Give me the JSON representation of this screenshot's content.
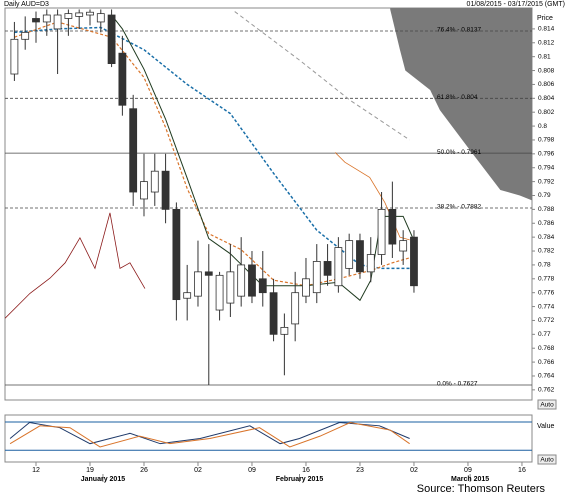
{
  "chart_data": {
    "type": "candlestick",
    "title": "Daily AUD=D3",
    "subtitle": "01/08/2015 - 03/17/2015 (GMT)",
    "y_label": "Price",
    "source": "Source: Thomson Reuters",
    "auto_label": "Auto",
    "open": [
      0.8075,
      0.8125,
      0.8155,
      0.815,
      0.814,
      0.8155,
      0.8158,
      0.816,
      0.815,
      0.816,
      0.8105,
      0.8025,
      0.7895,
      0.7905,
      0.7935,
      0.788,
      0.7752,
      0.7755,
      0.779,
      0.7735,
      0.7745,
      0.7755,
      0.78,
      0.778,
      0.776,
      0.77,
      0.7715,
      0.7755,
      0.776,
      0.7805,
      0.777,
      0.7795,
      0.7835,
      0.779,
      0.7815,
      0.788,
      0.782,
      0.784
    ],
    "high": [
      0.815,
      0.8158,
      0.8165,
      0.8168,
      0.8168,
      0.8168,
      0.8168,
      0.8168,
      0.8168,
      0.8168,
      0.813,
      0.8045,
      0.796,
      0.796,
      0.796,
      0.789,
      0.78,
      0.7835,
      0.783,
      0.779,
      0.783,
      0.784,
      0.782,
      0.782,
      0.778,
      0.773,
      0.779,
      0.781,
      0.783,
      0.783,
      0.784,
      0.7845,
      0.7845,
      0.784,
      0.7905,
      0.792,
      0.785,
      0.785
    ],
    "low": [
      0.8065,
      0.811,
      0.812,
      0.813,
      0.8075,
      0.813,
      0.814,
      0.8145,
      0.8135,
      0.8085,
      0.8015,
      0.7885,
      0.787,
      0.7885,
      0.786,
      0.772,
      0.772,
      0.774,
      0.7627,
      0.772,
      0.7725,
      0.774,
      0.7745,
      0.774,
      0.769,
      0.7641,
      0.769,
      0.7745,
      0.7745,
      0.777,
      0.776,
      0.7785,
      0.778,
      0.7775,
      0.78,
      0.781,
      0.78,
      0.776
    ],
    "close": [
      0.8125,
      0.8135,
      0.815,
      0.816,
      0.816,
      0.8162,
      0.8163,
      0.8164,
      0.8162,
      0.809,
      0.803,
      0.7905,
      0.792,
      0.7935,
      0.788,
      0.775,
      0.776,
      0.779,
      0.7785,
      0.7785,
      0.779,
      0.78,
      0.7755,
      0.776,
      0.77,
      0.771,
      0.776,
      0.778,
      0.7805,
      0.7785,
      0.7825,
      0.7835,
      0.779,
      0.7815,
      0.788,
      0.783,
      0.7835,
      0.777
    ],
    "up_color": "#ffffff",
    "down_color": "#333333",
    "xlim": [
      -0.87,
      47.93
    ],
    "xticks": [
      {
        "value": 2,
        "label": "12"
      },
      {
        "value": 7,
        "label": "19"
      },
      {
        "value": 12,
        "label": "26"
      },
      {
        "value": 17,
        "label": "02"
      },
      {
        "value": 22,
        "label": "09"
      },
      {
        "value": 27,
        "label": "16"
      },
      {
        "value": 32,
        "label": "23"
      },
      {
        "value": 37,
        "label": "02"
      },
      {
        "value": 42,
        "label": "09"
      },
      {
        "value": 47,
        "label": "16"
      }
    ],
    "month_labels": [
      {
        "value": 8.2,
        "label": "January 2015"
      },
      {
        "value": 26.4,
        "label": "February 2015"
      },
      {
        "value": 42.2,
        "label": "March 2015"
      }
    ],
    "ylim": [
      0.76054,
      0.81701
    ],
    "yticks": [
      0.762,
      0.764,
      0.766,
      0.768,
      0.77,
      0.772,
      0.774,
      0.776,
      0.778,
      0.78,
      0.782,
      0.784,
      0.786,
      0.788,
      0.79,
      0.792,
      0.794,
      0.796,
      0.798,
      0.8,
      0.802,
      0.804,
      0.806,
      0.808,
      0.81,
      0.812,
      0.814
    ],
    "overlays": [
      {
        "color": "#1a6fa8",
        "dash": "3,2",
        "width": 1.5,
        "x": [
          0,
          4,
          8,
          12,
          16,
          20,
          24,
          28,
          32,
          34,
          37
        ],
        "values": [
          0.8135,
          0.814,
          0.8142,
          0.811,
          0.806,
          0.8018,
          0.7932,
          0.785,
          0.78,
          0.7795,
          0.7795
        ]
      },
      {
        "color": "#d9742a",
        "dash": "3,2",
        "width": 1.2,
        "x": [
          0,
          4,
          9,
          12,
          14,
          16,
          18,
          21,
          24,
          27,
          30,
          33,
          35,
          37
        ],
        "values": [
          0.8128,
          0.815,
          0.8128,
          0.807,
          0.7998,
          0.791,
          0.7845,
          0.7822,
          0.7778,
          0.777,
          0.778,
          0.7792,
          0.7803,
          0.7812
        ]
      },
      {
        "color": "#1f3a1f",
        "dash": "",
        "width": 1,
        "x": [
          9,
          10,
          12,
          14,
          16,
          18,
          20,
          23,
          27,
          30,
          32,
          33,
          34,
          36,
          37
        ],
        "values": [
          0.816,
          0.814,
          0.8082,
          0.801,
          0.7925,
          0.7838,
          0.7816,
          0.777,
          0.777,
          0.7775,
          0.7749,
          0.7778,
          0.787,
          0.787,
          0.7835
        ]
      },
      {
        "color": "#d9742a",
        "dash": "",
        "width": 0.8,
        "x": [
          29.7,
          30.6,
          32.9,
          34.3,
          35.7,
          36.6
        ],
        "values": [
          0.7962,
          0.7948,
          0.7926,
          0.789,
          0.784,
          0.7836
        ]
      },
      {
        "color": "#999999",
        "dash": "4,3",
        "width": 1,
        "x": [
          20.4,
          26.4,
          31.1,
          36.6
        ],
        "values": [
          0.8165,
          0.8095,
          0.8037,
          0.798
        ]
      },
      {
        "color": "#8b1a1a",
        "dash": "",
        "width": 0.8,
        "x": [
          -0.87,
          1.44,
          3.3,
          4.7,
          6.07,
          7.46,
          8.85,
          9.78,
          10.7,
          12.09
        ],
        "values": [
          0.7723,
          0.7759,
          0.7781,
          0.7803,
          0.7839,
          0.7795,
          0.7875,
          0.7795,
          0.7803,
          0.7766
        ]
      }
    ],
    "cloud": {
      "color": "#7a7a7a",
      "x": [
        34.8,
        35.7,
        36.2,
        38.5,
        39.4,
        42.2,
        45,
        46.8,
        47.93
      ],
      "values": [
        0.8168,
        0.811,
        0.808,
        0.8052,
        0.8023,
        0.7965,
        0.7908,
        0.79,
        0.7893
      ]
    },
    "fib_levels": [
      {
        "value": 0.8137,
        "label": "76.4% - 0.8137",
        "dash": "3,2"
      },
      {
        "value": 0.804,
        "label": "61.8% - 0.804",
        "dash": "3,2"
      },
      {
        "value": 0.7961,
        "label": "50.0% - 0.7961",
        "dash": ""
      },
      {
        "value": 0.7882,
        "label": "38.2% - 0.7882",
        "dash": "3,2"
      },
      {
        "value": 0.7627,
        "label": "0.0% - 0.7627",
        "dash": ""
      }
    ],
    "oscillator": {
      "label": "Value",
      "auto_label": "Auto",
      "ylim": [
        0,
        100
      ],
      "bands": [
        85,
        25
      ],
      "band_color": "#1a5fa0",
      "series": [
        {
          "color": "#1f3a6a",
          "x": [
            -0.4,
            1.4,
            4.2,
            7,
            10.7,
            13.5,
            17.2,
            21.8,
            24.6,
            26.4,
            30.1,
            33.8,
            36.6
          ],
          "values": [
            50,
            84,
            73,
            39,
            61,
            39,
            50,
            77,
            39,
            50,
            84,
            77,
            50
          ]
        },
        {
          "color": "#d9742a",
          "x": [
            -0.4,
            2.37,
            5.15,
            7.93,
            11.6,
            14.4,
            18.1,
            22.7,
            25.5,
            28.3,
            31.1,
            34.8,
            36.6
          ],
          "values": [
            39,
            77,
            73,
            32,
            55,
            39,
            50,
            73,
            32,
            55,
            84,
            68,
            39
          ]
        }
      ]
    }
  }
}
